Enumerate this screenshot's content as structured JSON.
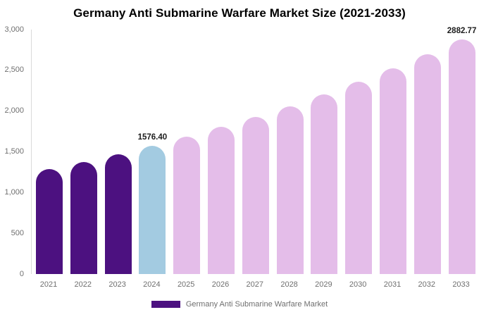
{
  "chart_data": {
    "type": "bar",
    "title": "Germany Anti Submarine Warfare Market Size (2021-2033)",
    "categories": [
      "2021",
      "2022",
      "2023",
      "2024",
      "2025",
      "2026",
      "2027",
      "2028",
      "2029",
      "2030",
      "2031",
      "2032",
      "2033"
    ],
    "series": [
      {
        "name": "Germany Anti Submarine Warfare Market",
        "values": [
          1289,
          1378,
          1474,
          1576.4,
          1686,
          1803,
          1928,
          2062,
          2205,
          2358,
          2522,
          2697,
          2882.77
        ]
      }
    ],
    "value_labels": [
      "",
      "",
      "",
      "1576.40",
      "",
      "",
      "",
      "",
      "",
      "",
      "",
      "",
      "2882.77"
    ],
    "bar_colors": [
      "#4C1180",
      "#4C1180",
      "#4C1180",
      "#A3CBE1",
      "#E4BDE9",
      "#E4BDE9",
      "#E4BDE9",
      "#E4BDE9",
      "#E4BDE9",
      "#E4BDE9",
      "#E4BDE9",
      "#E4BDE9",
      "#E4BDE9"
    ],
    "xlabel": "",
    "ylabel": "",
    "ylim": [
      0,
      3000
    ],
    "yticks": [
      "0",
      "500",
      "1,000",
      "1,500",
      "2,000",
      "2,500",
      "3,000"
    ],
    "grid": false,
    "axis_line_color": "#D9D9D9",
    "tick_label_color": "#6F6F6F",
    "value_label_color": "#1C1C1C",
    "legend": {
      "position": "bottom",
      "items": [
        {
          "label": "Germany Anti Submarine Warfare Market",
          "color": "#4C1180"
        }
      ]
    }
  }
}
